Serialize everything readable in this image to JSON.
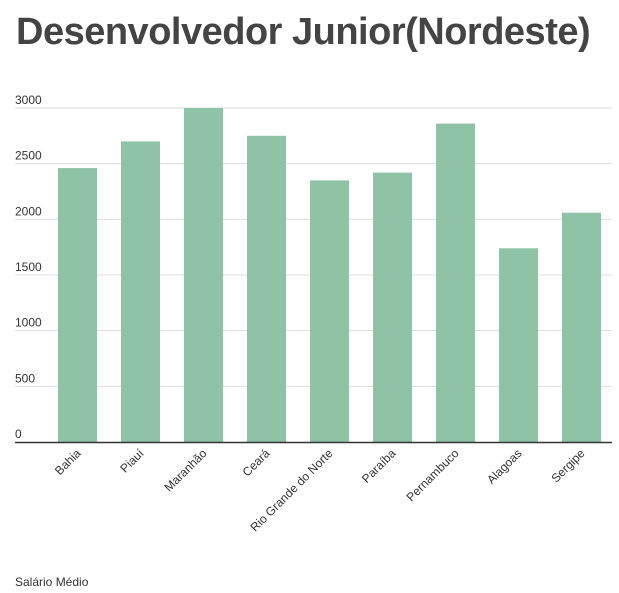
{
  "header": {
    "title": "Desenvolvedor Junior(Nordeste)"
  },
  "footer": {
    "series_label": "Salário Médio"
  },
  "colors": {
    "bar": "#8fc3a6",
    "grid": "#dddddd",
    "axis": "#333333",
    "text": "#444444"
  },
  "chart_data": {
    "type": "bar",
    "title": "Desenvolvedor Junior(Nordeste)",
    "xlabel": "",
    "ylabel": "",
    "categories": [
      "Bahia",
      "Piauí",
      "Maranhão",
      "Ceará",
      "Rio Grande do Norte",
      "Paraíba",
      "Pernambuco",
      "Alagoas",
      "Sergipe"
    ],
    "series": [
      {
        "name": "Salário Médio",
        "values": [
          2460,
          2700,
          3000,
          2750,
          2350,
          2420,
          2860,
          1740,
          2060
        ]
      }
    ],
    "ylim": [
      0,
      3000
    ],
    "yticks": [
      0,
      500,
      1000,
      1500,
      2000,
      2500,
      3000
    ],
    "grid": true,
    "legend": "bottom-left"
  }
}
